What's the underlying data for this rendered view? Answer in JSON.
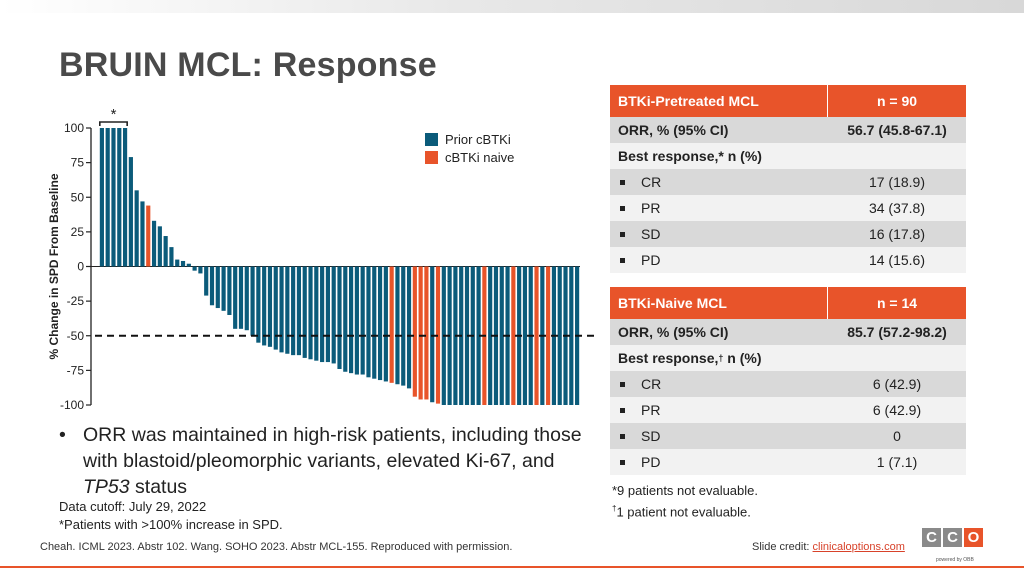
{
  "slide": {
    "title": "BRUIN MCL: Response",
    "bullet": {
      "mark": "•",
      "text_before": "ORR was maintained in high-risk patients, including those with blastoid/pleomorphic variants, elevated Ki-67, and",
      "italic": "TP53",
      "text_after": "status"
    },
    "data_cutoff": "Data cutoff: July 29, 2022",
    "asterisk_note": "*Patients with >100% increase in SPD.",
    "footer": "Cheah. ICML 2023. Abstr 102. Wang. SOHO 2023. Abstr MCL-155. Reproduced with permission.",
    "credit_label": "Slide credit:",
    "credit_link": "clinicaloptions.com",
    "logo_letters": [
      "C",
      "C",
      "O"
    ],
    "logo_sub": "powered by OBB"
  },
  "colors": {
    "prior": "#0b5b7a",
    "naive": "#e8542a"
  },
  "legend": {
    "prior_label": "Prior cBTKi",
    "naive_label": "cBTKi naive"
  },
  "chart_data": {
    "type": "bar",
    "title": "",
    "ylabel": "% Change in SPD From Baseline",
    "xlabel": "",
    "ylim": [
      -100,
      100
    ],
    "yticks": [
      100,
      75,
      50,
      25,
      0,
      -25,
      -50,
      -75,
      -100
    ],
    "reference_line": -50,
    "bracket_label": "*",
    "series": [
      {
        "name": "Prior cBTKi",
        "color": "prior"
      },
      {
        "name": "cBTKi naive",
        "color": "naive"
      }
    ],
    "bars": [
      {
        "v": 100,
        "g": "p"
      },
      {
        "v": 100,
        "g": "p"
      },
      {
        "v": 100,
        "g": "p"
      },
      {
        "v": 100,
        "g": "p"
      },
      {
        "v": 100,
        "g": "p"
      },
      {
        "v": 79,
        "g": "p"
      },
      {
        "v": 55,
        "g": "p"
      },
      {
        "v": 47,
        "g": "p"
      },
      {
        "v": 44,
        "g": "n"
      },
      {
        "v": 33,
        "g": "p"
      },
      {
        "v": 29,
        "g": "p"
      },
      {
        "v": 22,
        "g": "p"
      },
      {
        "v": 14,
        "g": "p"
      },
      {
        "v": 5,
        "g": "p"
      },
      {
        "v": 4,
        "g": "p"
      },
      {
        "v": 2,
        "g": "p"
      },
      {
        "v": -3,
        "g": "p"
      },
      {
        "v": -5,
        "g": "p"
      },
      {
        "v": -21,
        "g": "p"
      },
      {
        "v": -28,
        "g": "p"
      },
      {
        "v": -30,
        "g": "p"
      },
      {
        "v": -32,
        "g": "p"
      },
      {
        "v": -35,
        "g": "p"
      },
      {
        "v": -45,
        "g": "p"
      },
      {
        "v": -45,
        "g": "p"
      },
      {
        "v": -46,
        "g": "p"
      },
      {
        "v": -50,
        "g": "p"
      },
      {
        "v": -55,
        "g": "p"
      },
      {
        "v": -57,
        "g": "p"
      },
      {
        "v": -58,
        "g": "p"
      },
      {
        "v": -60,
        "g": "p"
      },
      {
        "v": -62,
        "g": "p"
      },
      {
        "v": -63,
        "g": "p"
      },
      {
        "v": -64,
        "g": "p"
      },
      {
        "v": -64,
        "g": "p"
      },
      {
        "v": -66,
        "g": "p"
      },
      {
        "v": -67,
        "g": "p"
      },
      {
        "v": -68,
        "g": "p"
      },
      {
        "v": -69,
        "g": "p"
      },
      {
        "v": -69,
        "g": "p"
      },
      {
        "v": -70,
        "g": "p"
      },
      {
        "v": -74,
        "g": "p"
      },
      {
        "v": -76,
        "g": "p"
      },
      {
        "v": -77,
        "g": "p"
      },
      {
        "v": -78,
        "g": "p"
      },
      {
        "v": -78,
        "g": "p"
      },
      {
        "v": -80,
        "g": "p"
      },
      {
        "v": -81,
        "g": "p"
      },
      {
        "v": -82,
        "g": "p"
      },
      {
        "v": -83,
        "g": "p"
      },
      {
        "v": -84,
        "g": "n"
      },
      {
        "v": -85,
        "g": "p"
      },
      {
        "v": -86,
        "g": "p"
      },
      {
        "v": -88,
        "g": "p"
      },
      {
        "v": -94,
        "g": "n"
      },
      {
        "v": -96,
        "g": "n"
      },
      {
        "v": -96,
        "g": "n"
      },
      {
        "v": -98,
        "g": "p"
      },
      {
        "v": -99,
        "g": "n"
      },
      {
        "v": -100,
        "g": "p"
      },
      {
        "v": -100,
        "g": "p"
      },
      {
        "v": -100,
        "g": "p"
      },
      {
        "v": -100,
        "g": "p"
      },
      {
        "v": -100,
        "g": "p"
      },
      {
        "v": -100,
        "g": "p"
      },
      {
        "v": -100,
        "g": "p"
      },
      {
        "v": -100,
        "g": "n"
      },
      {
        "v": -100,
        "g": "p"
      },
      {
        "v": -100,
        "g": "p"
      },
      {
        "v": -100,
        "g": "p"
      },
      {
        "v": -100,
        "g": "p"
      },
      {
        "v": -100,
        "g": "n"
      },
      {
        "v": -100,
        "g": "p"
      },
      {
        "v": -100,
        "g": "p"
      },
      {
        "v": -100,
        "g": "p"
      },
      {
        "v": -100,
        "g": "n"
      },
      {
        "v": -100,
        "g": "p"
      },
      {
        "v": -100,
        "g": "n"
      },
      {
        "v": -100,
        "g": "p"
      },
      {
        "v": -100,
        "g": "p"
      },
      {
        "v": -100,
        "g": "p"
      },
      {
        "v": -100,
        "g": "p"
      },
      {
        "v": -100,
        "g": "p"
      }
    ]
  },
  "pretreated": {
    "header_label": "BTKi-Pretreated MCL",
    "header_n": "n = 90",
    "orr_label": "ORR, % (95% CI)",
    "orr_value": "56.7 (45.8-67.1)",
    "best_label": "Best response,* n (%)",
    "rows": [
      {
        "label": "CR",
        "value": "17 (18.9)"
      },
      {
        "label": "PR",
        "value": "34 (37.8)"
      },
      {
        "label": "SD",
        "value": "16 (17.8)"
      },
      {
        "label": "PD",
        "value": "14 (15.6)"
      }
    ]
  },
  "naive": {
    "header_label": "BTKi-Naive MCL",
    "header_n": "n = 14",
    "orr_label": "ORR, % (95% CI)",
    "orr_value": "85.7 (57.2-98.2)",
    "best_label_main": "Best response,",
    "best_label_sup": "†",
    "best_label_tail": " n (%)",
    "rows": [
      {
        "label": "CR",
        "value": "6 (42.9)"
      },
      {
        "label": "PR",
        "value": "6 (42.9)"
      },
      {
        "label": "SD",
        "value": "0"
      },
      {
        "label": "PD",
        "value": "1 (7.1)"
      }
    ]
  },
  "footnotes": {
    "not_eval_1": "*9 patients not evaluable.",
    "dagger": "†",
    "not_eval_2": "1 patient not evaluable."
  }
}
